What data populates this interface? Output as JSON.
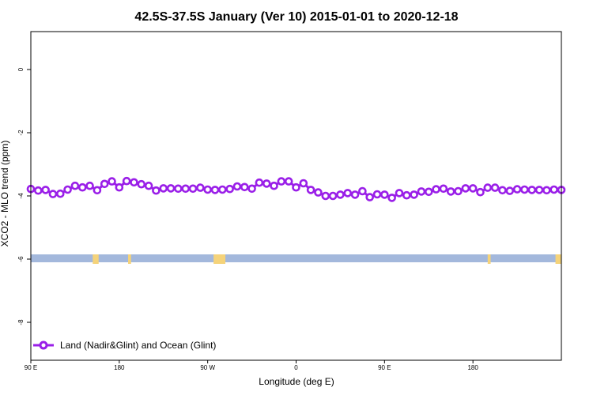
{
  "chart_data": {
    "type": "line",
    "title": "42.5S-37.5S January (Ver 10)   2015-01-01 to 2020-12-18",
    "xlabel": "Longitude (deg E)",
    "ylabel": "XCO2 - MLO trend (ppm)",
    "xlim": [
      90,
      450
    ],
    "ylim": [
      -9.2,
      1.2
    ],
    "x_ticks": [
      {
        "value": 90,
        "label": "90 E"
      },
      {
        "value": 150,
        "label": "180"
      },
      {
        "value": 210,
        "label": "90 W"
      },
      {
        "value": 270,
        "label": "0"
      },
      {
        "value": 330,
        "label": "90 E"
      },
      {
        "value": 390,
        "label": "180"
      }
    ],
    "y_ticks": [
      {
        "value": 0,
        "label": "0"
      },
      {
        "value": -2,
        "label": "-2"
      },
      {
        "value": -4,
        "label": "-4"
      },
      {
        "value": -6,
        "label": "-6"
      },
      {
        "value": -8,
        "label": "-8"
      }
    ],
    "series": [
      {
        "name": "Land (Nadir&Glint) and Ocean (Glint)",
        "color": "#9a1fe8",
        "x": [
          90,
          95,
          100,
          105,
          110,
          115,
          120,
          125,
          130,
          135,
          140,
          145,
          150,
          155,
          160,
          165,
          170,
          175,
          180,
          185,
          190,
          195,
          200,
          205,
          210,
          215,
          220,
          225,
          230,
          235,
          240,
          245,
          250,
          255,
          260,
          265,
          270,
          275,
          280,
          285,
          290,
          295,
          300,
          305,
          310,
          315,
          320,
          325,
          330,
          335,
          340,
          345,
          350,
          355,
          360,
          365,
          370,
          375,
          380,
          385,
          390,
          395,
          400,
          405,
          410,
          415,
          420,
          425,
          430,
          435,
          440,
          445,
          450
        ],
        "y": [
          -3.78,
          -3.83,
          -3.81,
          -3.94,
          -3.93,
          -3.8,
          -3.68,
          -3.73,
          -3.68,
          -3.82,
          -3.62,
          -3.54,
          -3.73,
          -3.53,
          -3.57,
          -3.63,
          -3.68,
          -3.83,
          -3.76,
          -3.76,
          -3.77,
          -3.77,
          -3.77,
          -3.74,
          -3.8,
          -3.81,
          -3.8,
          -3.78,
          -3.7,
          -3.72,
          -3.77,
          -3.58,
          -3.61,
          -3.68,
          -3.54,
          -3.54,
          -3.73,
          -3.6,
          -3.81,
          -3.89,
          -4.0,
          -4.0,
          -3.96,
          -3.91,
          -3.96,
          -3.85,
          -4.04,
          -3.95,
          -3.96,
          -4.06,
          -3.91,
          -3.98,
          -3.96,
          -3.86,
          -3.87,
          -3.79,
          -3.77,
          -3.86,
          -3.85,
          -3.76,
          -3.76,
          -3.88,
          -3.74,
          -3.74,
          -3.82,
          -3.84,
          -3.79,
          -3.8,
          -3.81,
          -3.81,
          -3.82,
          -3.8,
          -3.81
        ]
      }
    ],
    "land_mask_band": {
      "y_range": [
        -6.1,
        -5.85
      ],
      "ocean_color": "#a3b8dc",
      "land_color": "#f5d37a",
      "land_segments": [
        [
          132,
          136
        ],
        [
          156,
          158
        ],
        [
          214,
          222
        ],
        [
          400,
          402
        ],
        [
          446,
          450
        ]
      ]
    },
    "legend": {
      "position": "bottom-left",
      "label": "Land (Nadir&Glint) and Ocean (Glint)"
    }
  }
}
